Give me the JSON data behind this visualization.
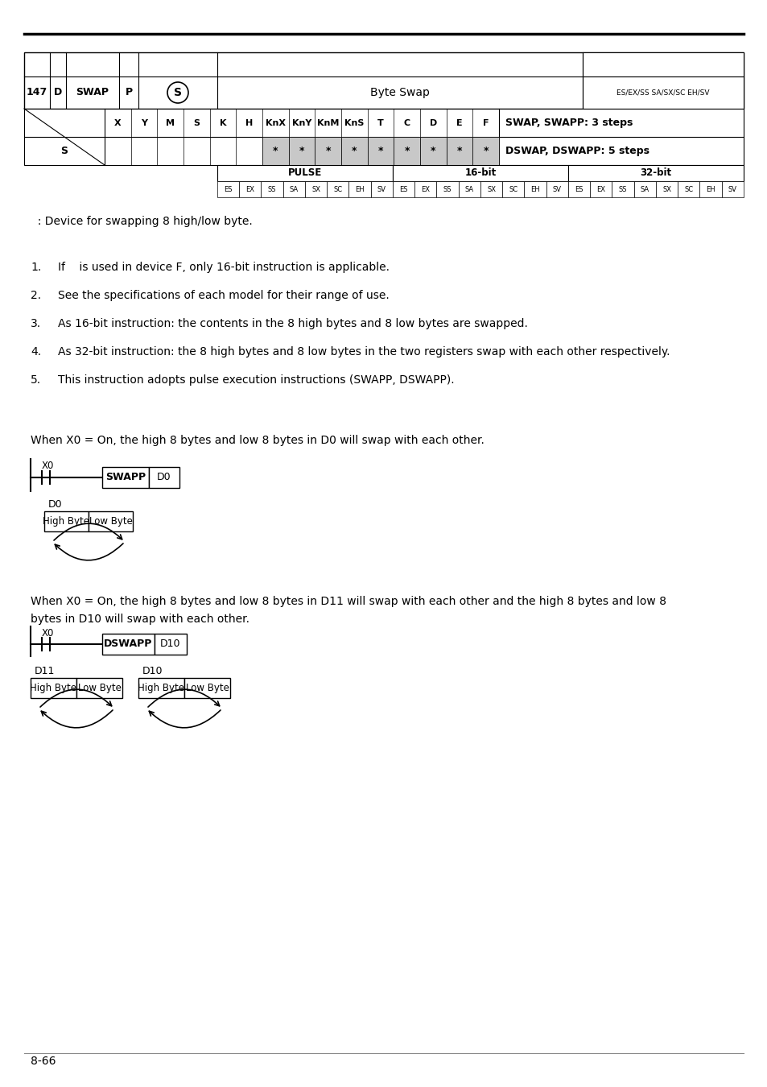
{
  "page_num": "8-66",
  "instr_num": "147",
  "instr_d": "D",
  "instr_name": "SWAP",
  "instr_p": "P",
  "instr_desc": "Byte Swap",
  "compat_top": "ES/EX/SS SA/SX/SC EH/SV",
  "col_labels": [
    "X",
    "Y",
    "M",
    "S",
    "K",
    "H",
    "KnX",
    "KnY",
    "KnM",
    "KnS",
    "T",
    "C",
    "D",
    "E",
    "F"
  ],
  "operand_s_marks": [
    "",
    "",
    "",
    "",
    "",
    "",
    "*",
    "*",
    "*",
    "*",
    "*",
    "*",
    "*",
    "*",
    "*"
  ],
  "steps_swap": "SWAP, SWAPP: 3 steps",
  "steps_dswap": "DSWAP, DSWAPP: 5 steps",
  "pulse_label": "PULSE",
  "bit16_label": "16-bit",
  "bit32_label": "32-bit",
  "sub_cells": [
    "ES",
    "EX",
    "SS",
    "SA",
    "SX",
    "SC",
    "EH",
    "SV"
  ],
  "s_note": "  : Device for swapping 8 high/low byte.",
  "notes": [
    "If    is used in device F, only 16-bit instruction is applicable.",
    "See the specifications of each model for their range of use.",
    "As 16-bit instruction: the contents in the 8 high bytes and 8 low bytes are swapped.",
    "As 32-bit instruction: the 8 high bytes and 8 low bytes in the two registers swap with each other respectively.",
    "This instruction adopts pulse execution instructions (SWAPP, DSWAPP)."
  ],
  "ex1_text": "When X0 = On, the high 8 bytes and low 8 bytes in D0 will swap with each other.",
  "ex2_text1": "When X0 = On, the high 8 bytes and low 8 bytes in D11 will swap with each other and the high 8 bytes and low 8",
  "ex2_text2": "bytes in D10 will swap with each other.",
  "bg_color": "#ffffff",
  "gray_fill": "#c8c8c8"
}
